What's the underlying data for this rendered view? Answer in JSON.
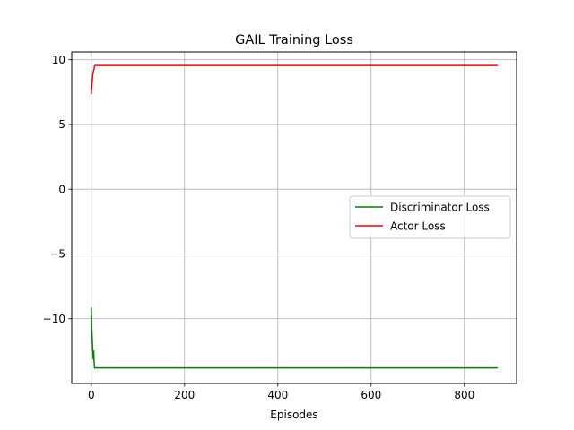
{
  "chart_data": {
    "type": "line",
    "title": "GAIL Training Loss",
    "xlabel": "Episodes",
    "ylabel": "",
    "xlim": [
      -42,
      912
    ],
    "ylim": [
      -15.0,
      10.6
    ],
    "grid": true,
    "legend_position": "center-right",
    "x_ticks": [
      0,
      200,
      400,
      600,
      800
    ],
    "x_tick_labels": [
      "0",
      "200",
      "400",
      "600",
      "800"
    ],
    "y_ticks": [
      10,
      5,
      0,
      -5,
      -10
    ],
    "y_tick_labels": [
      "10",
      "5",
      "0",
      "−5",
      "−10"
    ],
    "series": [
      {
        "name": "Discriminator Loss",
        "color": "#008000",
        "x": [
          0,
          1,
          2,
          3,
          4,
          5,
          6,
          7,
          8,
          9,
          10,
          870
        ],
        "y": [
          -9.2,
          -10.8,
          -11.6,
          -12.4,
          -13.1,
          -12.5,
          -13.3,
          -13.8,
          -13.8,
          -13.8,
          -13.8,
          -13.8
        ]
      },
      {
        "name": "Actor Loss",
        "color": "#ff0000",
        "x": [
          0,
          1,
          2,
          3,
          4,
          5,
          6,
          7,
          8,
          9,
          10,
          870
        ],
        "y": [
          7.4,
          7.9,
          8.4,
          8.8,
          9.0,
          9.2,
          9.3,
          9.5,
          9.55,
          9.55,
          9.55,
          9.55
        ]
      }
    ]
  }
}
